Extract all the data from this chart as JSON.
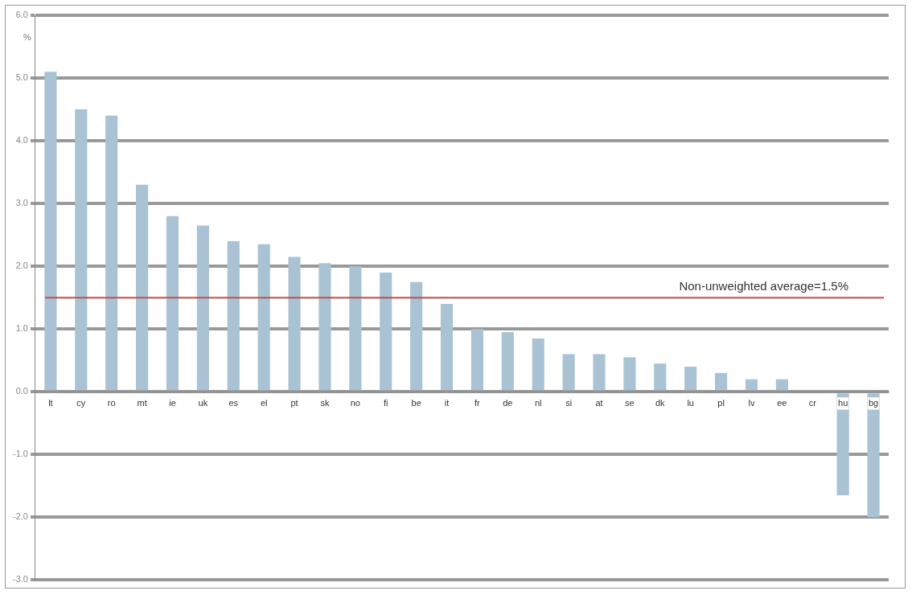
{
  "chart_data": {
    "type": "bar",
    "ylabel": "%",
    "categories": [
      "lt",
      "cy",
      "ro",
      "mt",
      "ie",
      "uk",
      "es",
      "el",
      "pt",
      "sk",
      "no",
      "fi",
      "be",
      "it",
      "fr",
      "de",
      "nl",
      "si",
      "at",
      "se",
      "dk",
      "lu",
      "pl",
      "lv",
      "ee",
      "cr",
      "hu",
      "bg"
    ],
    "values": [
      5.1,
      4.5,
      4.4,
      3.3,
      2.8,
      2.65,
      2.4,
      2.35,
      2.15,
      2.05,
      2.0,
      1.9,
      1.75,
      1.4,
      1.0,
      0.95,
      0.85,
      0.6,
      0.6,
      0.55,
      0.45,
      0.4,
      0.3,
      0.2,
      0.2,
      0,
      -1.65,
      -2.0
    ],
    "color": "#a9c3d4",
    "ylim": [
      -3,
      6
    ],
    "yticks": [
      {
        "value": -3,
        "label": "-3.0"
      },
      {
        "value": -2,
        "label": "-2.0"
      },
      {
        "value": -1,
        "label": "-1.0"
      },
      {
        "value": 0,
        "label": "0.0"
      },
      {
        "value": 1,
        "label": "1.0"
      },
      {
        "value": 2,
        "label": "2.0"
      },
      {
        "value": 3,
        "label": "3.0"
      },
      {
        "value": 4,
        "label": "4.0"
      },
      {
        "value": 5,
        "label": "5.0"
      },
      {
        "value": 6,
        "label": "6.0"
      }
    ],
    "grid": "y",
    "ref_lines": [
      {
        "axis": "y",
        "value": 1.5,
        "label": "Non-unweighted average=1.5%",
        "color": "#c0504d"
      }
    ]
  }
}
